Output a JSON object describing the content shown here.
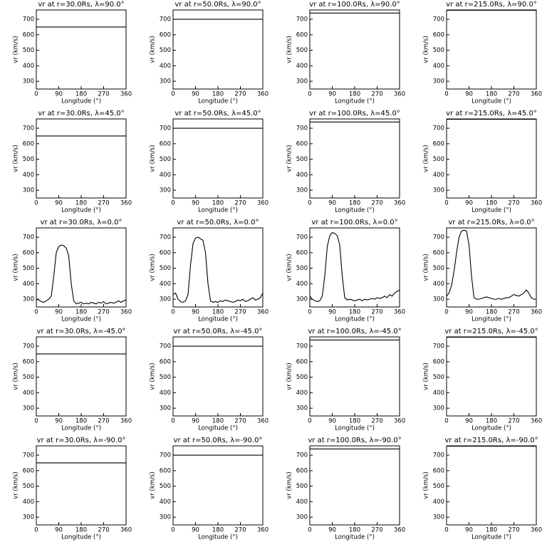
{
  "chart_data": [
    {
      "type": "line",
      "title": "vr at r=30.0Rs, λ=90.0°",
      "x_label": "Longitude (°)",
      "y_label": "vr (km/s)",
      "xlim": [
        0,
        360
      ],
      "ylim": [
        250,
        760
      ],
      "xticks": [
        0,
        90,
        180,
        270,
        360
      ],
      "yticks": [
        300,
        400,
        500,
        600,
        700
      ],
      "color": "#000000",
      "x": [
        0,
        360
      ],
      "values": [
        650,
        650
      ]
    },
    {
      "type": "line",
      "title": "vr at r=50.0Rs, λ=90.0°",
      "x_label": "Longitude (°)",
      "y_label": "vr (km/s)",
      "xlim": [
        0,
        360
      ],
      "ylim": [
        250,
        760
      ],
      "xticks": [
        0,
        90,
        180,
        270,
        360
      ],
      "yticks": [
        300,
        400,
        500,
        600,
        700
      ],
      "color": "#000000",
      "x": [
        0,
        360
      ],
      "values": [
        700,
        700
      ]
    },
    {
      "type": "line",
      "title": "vr at r=100.0Rs, λ=90.0°",
      "x_label": "Longitude (°)",
      "y_label": "vr (km/s)",
      "xlim": [
        0,
        360
      ],
      "ylim": [
        250,
        760
      ],
      "xticks": [
        0,
        90,
        180,
        270,
        360
      ],
      "yticks": [
        300,
        400,
        500,
        600,
        700
      ],
      "color": "#000000",
      "x": [
        0,
        360
      ],
      "values": [
        740,
        740
      ]
    },
    {
      "type": "line",
      "title": "vr at r=215.0Rs, λ=90.0°",
      "x_label": "Longitude (°)",
      "y_label": "vr (km/s)",
      "xlim": [
        0,
        360
      ],
      "ylim": [
        250,
        760
      ],
      "xticks": [
        0,
        90,
        180,
        270,
        360
      ],
      "yticks": [
        300,
        400,
        500,
        600,
        700
      ],
      "color": "#000000",
      "x": [
        0,
        360
      ],
      "values": [
        758,
        758
      ]
    },
    {
      "type": "line",
      "title": "vr at r=30.0Rs, λ=45.0°",
      "x_label": "Longitude (°)",
      "y_label": "vr (km/s)",
      "xlim": [
        0,
        360
      ],
      "ylim": [
        250,
        760
      ],
      "xticks": [
        0,
        90,
        180,
        270,
        360
      ],
      "yticks": [
        300,
        400,
        500,
        600,
        700
      ],
      "color": "#000000",
      "x": [
        0,
        360
      ],
      "values": [
        650,
        650
      ]
    },
    {
      "type": "line",
      "title": "vr at r=50.0Rs, λ=45.0°",
      "x_label": "Longitude (°)",
      "y_label": "vr (km/s)",
      "xlim": [
        0,
        360
      ],
      "ylim": [
        250,
        760
      ],
      "xticks": [
        0,
        90,
        180,
        270,
        360
      ],
      "yticks": [
        300,
        400,
        500,
        600,
        700
      ],
      "color": "#000000",
      "x": [
        0,
        360
      ],
      "values": [
        700,
        700
      ]
    },
    {
      "type": "line",
      "title": "vr at r=100.0Rs, λ=45.0°",
      "x_label": "Longitude (°)",
      "y_label": "vr (km/s)",
      "xlim": [
        0,
        360
      ],
      "ylim": [
        250,
        760
      ],
      "xticks": [
        0,
        90,
        180,
        270,
        360
      ],
      "yticks": [
        300,
        400,
        500,
        600,
        700
      ],
      "color": "#000000",
      "x": [
        0,
        360
      ],
      "values": [
        740,
        740
      ]
    },
    {
      "type": "line",
      "title": "vr at r=215.0Rs, λ=45.0°",
      "x_label": "Longitude (°)",
      "y_label": "vr (km/s)",
      "xlim": [
        0,
        360
      ],
      "ylim": [
        250,
        760
      ],
      "xticks": [
        0,
        90,
        180,
        270,
        360
      ],
      "yticks": [
        300,
        400,
        500,
        600,
        700
      ],
      "color": "#000000",
      "x": [
        0,
        360
      ],
      "values": [
        758,
        758
      ]
    },
    {
      "type": "line",
      "title": "vr at r=30.0Rs, λ=0.0°",
      "x_label": "Longitude (°)",
      "y_label": "vr (km/s)",
      "xlim": [
        0,
        360
      ],
      "ylim": [
        250,
        760
      ],
      "xticks": [
        0,
        90,
        180,
        270,
        360
      ],
      "yticks": [
        300,
        400,
        500,
        600,
        700
      ],
      "color": "#000000",
      "x": [
        0,
        10,
        20,
        30,
        40,
        50,
        60,
        70,
        80,
        90,
        100,
        110,
        120,
        130,
        140,
        150,
        160,
        170,
        180,
        190,
        200,
        210,
        220,
        230,
        240,
        250,
        260,
        270,
        280,
        290,
        300,
        310,
        320,
        330,
        340,
        350,
        360
      ],
      "values": [
        300,
        295,
        285,
        280,
        290,
        300,
        320,
        450,
        600,
        640,
        650,
        645,
        630,
        580,
        400,
        290,
        270,
        275,
        280,
        270,
        275,
        270,
        280,
        275,
        270,
        280,
        275,
        285,
        270,
        275,
        280,
        275,
        280,
        290,
        280,
        290,
        295
      ]
    },
    {
      "type": "line",
      "title": "vr at r=50.0Rs, λ=0.0°",
      "x_label": "Longitude (°)",
      "y_label": "vr (km/s)",
      "xlim": [
        0,
        360
      ],
      "ylim": [
        250,
        760
      ],
      "xticks": [
        0,
        90,
        180,
        270,
        360
      ],
      "yticks": [
        300,
        400,
        500,
        600,
        700
      ],
      "color": "#000000",
      "x": [
        0,
        10,
        20,
        30,
        40,
        50,
        60,
        70,
        80,
        90,
        100,
        110,
        120,
        130,
        140,
        150,
        160,
        170,
        180,
        190,
        200,
        210,
        220,
        230,
        240,
        250,
        260,
        270,
        280,
        290,
        300,
        310,
        320,
        330,
        340,
        350,
        360
      ],
      "values": [
        330,
        340,
        300,
        285,
        280,
        290,
        330,
        520,
        660,
        695,
        700,
        690,
        680,
        600,
        400,
        290,
        280,
        285,
        280,
        290,
        285,
        295,
        290,
        285,
        280,
        285,
        295,
        290,
        300,
        285,
        290,
        300,
        310,
        295,
        300,
        310,
        340
      ]
    },
    {
      "type": "line",
      "title": "vr at r=100.0Rs, λ=0.0°",
      "x_label": "Longitude (°)",
      "y_label": "vr (km/s)",
      "xlim": [
        0,
        360
      ],
      "ylim": [
        250,
        760
      ],
      "xticks": [
        0,
        90,
        180,
        270,
        360
      ],
      "yticks": [
        300,
        400,
        500,
        600,
        700
      ],
      "color": "#000000",
      "x": [
        0,
        10,
        20,
        30,
        40,
        50,
        60,
        70,
        80,
        90,
        100,
        110,
        120,
        130,
        140,
        150,
        160,
        170,
        180,
        190,
        200,
        210,
        220,
        230,
        240,
        250,
        260,
        270,
        280,
        290,
        300,
        310,
        320,
        330,
        340,
        350,
        360
      ],
      "values": [
        320,
        300,
        290,
        285,
        290,
        320,
        450,
        640,
        710,
        730,
        725,
        710,
        650,
        450,
        310,
        295,
        300,
        295,
        290,
        295,
        300,
        290,
        300,
        295,
        300,
        305,
        300,
        310,
        305,
        310,
        320,
        310,
        330,
        320,
        340,
        350,
        360
      ]
    },
    {
      "type": "line",
      "title": "vr at r=215.0Rs, λ=0.0°",
      "x_label": "Longitude (°)",
      "y_label": "vr (km/s)",
      "xlim": [
        0,
        360
      ],
      "ylim": [
        250,
        760
      ],
      "xticks": [
        0,
        90,
        180,
        270,
        360
      ],
      "yticks": [
        300,
        400,
        500,
        600,
        700
      ],
      "color": "#000000",
      "x": [
        0,
        10,
        20,
        30,
        40,
        50,
        60,
        70,
        80,
        90,
        100,
        110,
        120,
        130,
        140,
        150,
        160,
        170,
        180,
        190,
        200,
        210,
        220,
        230,
        240,
        250,
        260,
        270,
        280,
        290,
        300,
        310,
        320,
        330,
        340,
        350,
        360
      ],
      "values": [
        320,
        340,
        390,
        480,
        600,
        700,
        740,
        745,
        740,
        650,
        450,
        310,
        300,
        300,
        305,
        310,
        315,
        310,
        305,
        300,
        300,
        305,
        300,
        305,
        310,
        310,
        320,
        330,
        325,
        320,
        330,
        340,
        360,
        340,
        310,
        300,
        300
      ]
    },
    {
      "type": "line",
      "title": "vr at r=30.0Rs, λ=-45.0°",
      "x_label": "Longitude (°)",
      "y_label": "vr (km/s)",
      "xlim": [
        0,
        360
      ],
      "ylim": [
        250,
        760
      ],
      "xticks": [
        0,
        90,
        180,
        270,
        360
      ],
      "yticks": [
        300,
        400,
        500,
        600,
        700
      ],
      "color": "#000000",
      "x": [
        0,
        360
      ],
      "values": [
        650,
        650
      ]
    },
    {
      "type": "line",
      "title": "vr at r=50.0Rs, λ=-45.0°",
      "x_label": "Longitude (°)",
      "y_label": "vr (km/s)",
      "xlim": [
        0,
        360
      ],
      "ylim": [
        250,
        760
      ],
      "xticks": [
        0,
        90,
        180,
        270,
        360
      ],
      "yticks": [
        300,
        400,
        500,
        600,
        700
      ],
      "color": "#000000",
      "x": [
        0,
        360
      ],
      "values": [
        700,
        700
      ]
    },
    {
      "type": "line",
      "title": "vr at r=100.0Rs, λ=-45.0°",
      "x_label": "Longitude (°)",
      "y_label": "vr (km/s)",
      "xlim": [
        0,
        360
      ],
      "ylim": [
        250,
        760
      ],
      "xticks": [
        0,
        90,
        180,
        270,
        360
      ],
      "yticks": [
        300,
        400,
        500,
        600,
        700
      ],
      "color": "#000000",
      "x": [
        0,
        360
      ],
      "values": [
        740,
        740
      ]
    },
    {
      "type": "line",
      "title": "vr at r=215.0Rs, λ=-45.0°",
      "x_label": "Longitude (°)",
      "y_label": "vr (km/s)",
      "xlim": [
        0,
        360
      ],
      "ylim": [
        250,
        760
      ],
      "xticks": [
        0,
        90,
        180,
        270,
        360
      ],
      "yticks": [
        300,
        400,
        500,
        600,
        700
      ],
      "color": "#000000",
      "x": [
        0,
        360
      ],
      "values": [
        758,
        758
      ]
    },
    {
      "type": "line",
      "title": "vr at r=30.0Rs, λ=-90.0°",
      "x_label": "Longitude (°)",
      "y_label": "vr (km/s)",
      "xlim": [
        0,
        360
      ],
      "ylim": [
        250,
        760
      ],
      "xticks": [
        0,
        90,
        180,
        270,
        360
      ],
      "yticks": [
        300,
        400,
        500,
        600,
        700
      ],
      "color": "#000000",
      "x": [
        0,
        360
      ],
      "values": [
        650,
        650
      ]
    },
    {
      "type": "line",
      "title": "vr at r=50.0Rs, λ=-90.0°",
      "x_label": "Longitude (°)",
      "y_label": "vr (km/s)",
      "xlim": [
        0,
        360
      ],
      "ylim": [
        250,
        760
      ],
      "xticks": [
        0,
        90,
        180,
        270,
        360
      ],
      "yticks": [
        300,
        400,
        500,
        600,
        700
      ],
      "color": "#000000",
      "x": [
        0,
        360
      ],
      "values": [
        700,
        700
      ]
    },
    {
      "type": "line",
      "title": "vr at r=100.0Rs, λ=-90.0°",
      "x_label": "Longitude (°)",
      "y_label": "vr (km/s)",
      "xlim": [
        0,
        360
      ],
      "ylim": [
        250,
        760
      ],
      "xticks": [
        0,
        90,
        180,
        270,
        360
      ],
      "yticks": [
        300,
        400,
        500,
        600,
        700
      ],
      "color": "#000000",
      "x": [
        0,
        360
      ],
      "values": [
        740,
        740
      ]
    },
    {
      "type": "line",
      "title": "vr at r=215.0Rs, λ=-90.0°",
      "x_label": "Longitude (°)",
      "y_label": "vr (km/s)",
      "xlim": [
        0,
        360
      ],
      "ylim": [
        250,
        760
      ],
      "xticks": [
        0,
        90,
        180,
        270,
        360
      ],
      "yticks": [
        300,
        400,
        500,
        600,
        700
      ],
      "color": "#000000",
      "x": [
        0,
        360
      ],
      "values": [
        758,
        758
      ]
    }
  ]
}
